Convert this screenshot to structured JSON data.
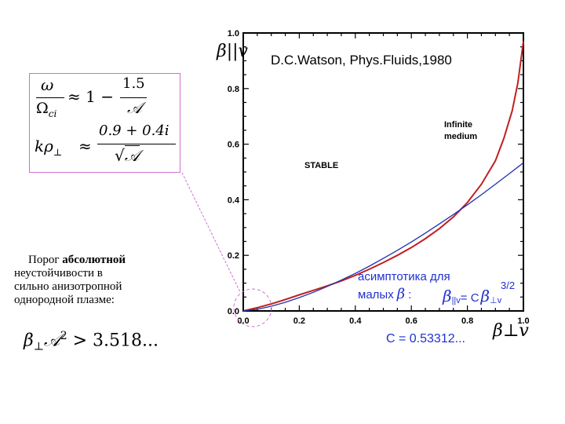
{
  "chart_data": {
    "type": "line",
    "title": "D.C.Watson, Phys.Fluids,1980",
    "xlabel": "β⊥v",
    "ylabel": "β||v",
    "xlim": [
      0.0,
      1.0
    ],
    "ylim": [
      0.0,
      1.0
    ],
    "xticks": [
      "0.0",
      "0.2",
      "0.4",
      "0.6",
      "0.8",
      "1.0"
    ],
    "yticks": [
      "0.0",
      "0.2",
      "0.4",
      "0.6",
      "0.8",
      "1.0"
    ],
    "grid": false,
    "series": [
      {
        "name": "Infinite medium",
        "color": "#c02020",
        "x": [
          0.0,
          0.05,
          0.1,
          0.15,
          0.2,
          0.25,
          0.3,
          0.35,
          0.4,
          0.45,
          0.5,
          0.55,
          0.6,
          0.65,
          0.7,
          0.75,
          0.8,
          0.85,
          0.9,
          0.93,
          0.96,
          0.98,
          1.0
        ],
        "y": [
          0.0,
          0.012,
          0.025,
          0.041,
          0.058,
          0.074,
          0.09,
          0.108,
          0.128,
          0.15,
          0.174,
          0.2,
          0.228,
          0.26,
          0.296,
          0.338,
          0.39,
          0.456,
          0.54,
          0.62,
          0.72,
          0.82,
          0.97
        ]
      },
      {
        "name": "",
        "color": "#2030b0",
        "x": [
          0.0,
          0.05,
          0.1,
          0.15,
          0.2,
          0.25,
          0.3,
          0.35,
          0.4,
          0.45,
          0.5,
          0.55,
          0.6,
          0.65,
          0.7,
          0.75,
          0.8,
          0.85,
          0.9,
          0.95,
          1.0
        ],
        "y": [
          0.0,
          0.006,
          0.017,
          0.031,
          0.048,
          0.067,
          0.088,
          0.111,
          0.135,
          0.161,
          0.189,
          0.218,
          0.248,
          0.28,
          0.313,
          0.347,
          0.382,
          0.418,
          0.456,
          0.494,
          0.533
        ]
      }
    ],
    "annotations": {
      "stable": "STABLE",
      "infinite_line1": "Infinite",
      "infinite_line2": "medium",
      "asym_line1": "асимптотика для",
      "asym_line2_prefix": "малых",
      "asym_beta": "β",
      "asym_colon": ":",
      "asym_eq_left": "β",
      "asym_eq_left_sub": "||v",
      "asym_eq_mid": "= C",
      "asym_eq_right": "β",
      "asym_eq_right_sub": "⊥v",
      "asym_eq_exp": "3/2",
      "c_value": "C = 0.53312..."
    }
  },
  "formulas": {
    "f1_num": "ω",
    "f1_den": "Ω",
    "f1_den_sub": "ci",
    "f1_approx": "≈ 1 −",
    "f1_rhs_num": "1.5",
    "f1_rhs_den": "𝒜",
    "f2_lhs": "kρ",
    "f2_lhs_sub": "⊥",
    "f2_approx": "≈",
    "f2_num": "0.9 + 0.4i",
    "f2_den_root": "√",
    "f2_den": "𝒜"
  },
  "caption": {
    "line1_prefix": "Порог ",
    "line1_bold": "абсолютной",
    "line2": "неустойчивости в",
    "line3": "сильно анизотропной",
    "line4": "однородной плазме:"
  },
  "bottom_formula": {
    "lhs": "β",
    "lhs_sub": "⊥",
    "calA": "𝒜",
    "exp": "2",
    "rhs": " > 3.518..."
  },
  "colors": {
    "accent_pink": "#d070d0",
    "asym_blue": "#2030d0",
    "red_curve": "#c02020",
    "blue_curve": "#2030b0"
  }
}
